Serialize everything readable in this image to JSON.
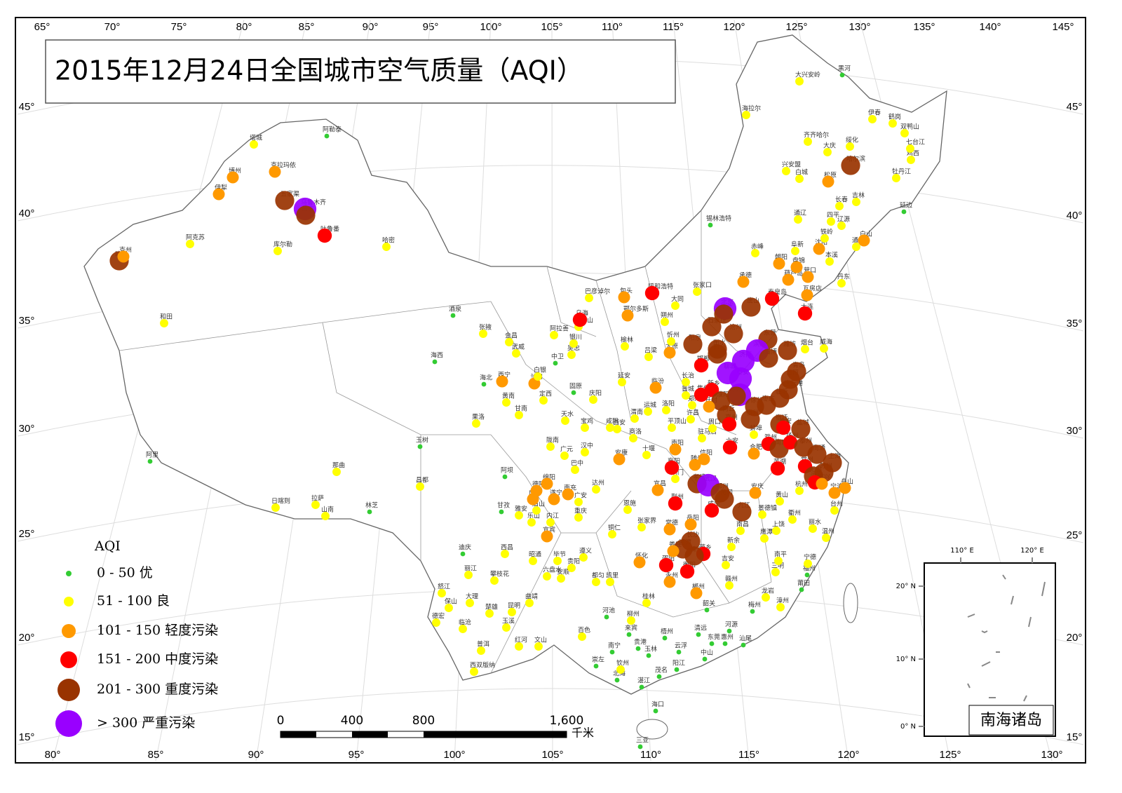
{
  "title": "2015年12月24日全国城市空气质量（AQI）",
  "graticule": {
    "top": [
      "65°",
      "70°",
      "75°",
      "80°",
      "85°",
      "90°",
      "95°",
      "100°",
      "105°",
      "110°",
      "115°",
      "120°",
      "125°",
      "130°",
      "135°",
      "140°",
      "145°"
    ],
    "bottom": [
      "80°",
      "85°",
      "90°",
      "95°",
      "100°",
      "105°",
      "110°",
      "115°",
      "120°",
      "125°",
      "130°"
    ],
    "left": [
      "45°",
      "40°",
      "35°",
      "30°",
      "25°",
      "20°",
      "15°"
    ],
    "right": [
      "45°",
      "40°",
      "35°",
      "30°",
      "25°",
      "20°",
      "15°"
    ]
  },
  "legend": {
    "title": "AQI",
    "items": [
      {
        "label": "0 - 50 优",
        "color": "#33cc33"
      },
      {
        "label": "51 - 100 良",
        "color": "#ffff00"
      },
      {
        "label": "101 - 150 轻度污染",
        "color": "#ff9900"
      },
      {
        "label": "151 - 200 中度污染",
        "color": "#ff0000"
      },
      {
        "label": "201 - 300 重度污染",
        "color": "#993300"
      },
      {
        "label": "> 300 严重污染",
        "color": "#9900ff"
      }
    ]
  },
  "scale_bar": {
    "labels": [
      "0",
      "400",
      "800",
      "1,600"
    ],
    "unit": "千米"
  },
  "inset": {
    "title": "南海诸岛",
    "labels": [
      "110° E",
      "120° E",
      "20° N",
      "10° N",
      "0° N"
    ]
  },
  "cities": [
    {
      "name": "塔城",
      "level": 1
    },
    {
      "name": "阿勒泰",
      "level": 0
    },
    {
      "name": "博州",
      "level": 2
    },
    {
      "name": "克拉玛依",
      "level": 2
    },
    {
      "name": "伊犁",
      "level": 2
    },
    {
      "name": "五家渠",
      "level": 4
    },
    {
      "name": "乌鲁木齐",
      "level": 5
    },
    {
      "name": "昌吉",
      "level": 4
    },
    {
      "name": "吐鲁番",
      "level": 3
    },
    {
      "name": "阿克苏",
      "level": 1
    },
    {
      "name": "库尔勒",
      "level": 1
    },
    {
      "name": "哈密",
      "level": 1
    },
    {
      "name": "喀什",
      "level": 4
    },
    {
      "name": "克州",
      "level": 2
    },
    {
      "name": "和田",
      "level": 1
    },
    {
      "name": "阿里",
      "level": 0
    },
    {
      "name": "日喀则",
      "level": 1
    },
    {
      "name": "拉萨",
      "level": 1
    },
    {
      "name": "山南",
      "level": 1
    },
    {
      "name": "林芝",
      "level": 0
    },
    {
      "name": "那曲",
      "level": 1
    },
    {
      "name": "昌都",
      "level": 1
    },
    {
      "name": "玉树",
      "level": 0
    },
    {
      "name": "果洛",
      "level": 1
    },
    {
      "name": "海西",
      "level": 0
    },
    {
      "name": "酒泉",
      "level": 0
    },
    {
      "name": "张掖",
      "level": 1
    },
    {
      "name": "金昌",
      "level": 1
    },
    {
      "name": "武威",
      "level": 1
    },
    {
      "name": "海北",
      "level": 0
    },
    {
      "name": "西宁",
      "level": 2
    },
    {
      "name": "黄南",
      "level": 1
    },
    {
      "name": "兰州",
      "level": 2
    },
    {
      "name": "定西",
      "level": 1
    },
    {
      "name": "甘南",
      "level": 1
    },
    {
      "name": "天水",
      "level": 1
    },
    {
      "name": "陇南",
      "level": 1
    },
    {
      "name": "阿拉善",
      "level": 1
    },
    {
      "name": "银川",
      "level": 1
    },
    {
      "name": "石嘴山",
      "level": 1
    },
    {
      "name": "吴忠",
      "level": 1
    },
    {
      "name": "中卫",
      "level": 0
    },
    {
      "name": "固原",
      "level": 0
    },
    {
      "name": "庆阳",
      "level": 1
    },
    {
      "name": "乌海",
      "level": 3
    },
    {
      "name": "巴彦淖尔",
      "level": 1
    },
    {
      "name": "包头",
      "level": 2
    },
    {
      "name": "呼和浩特",
      "level": 3
    },
    {
      "name": "鄂尔多斯",
      "level": 2
    },
    {
      "name": "榆林",
      "level": 1
    },
    {
      "name": "延安",
      "level": 1
    },
    {
      "name": "锡林浩特",
      "level": 0
    },
    {
      "name": "赤峰",
      "level": 1
    },
    {
      "name": "大兴安岭",
      "level": 1
    },
    {
      "name": "黑河",
      "level": 0
    },
    {
      "name": "海拉尔",
      "level": 1
    },
    {
      "name": "齐齐哈尔",
      "level": 1
    },
    {
      "name": "大庆",
      "level": 1
    },
    {
      "name": "绥化",
      "level": 1
    },
    {
      "name": "哈尔滨",
      "level": 4
    },
    {
      "name": "伊春",
      "level": 1
    },
    {
      "name": "鹤岗",
      "level": 1
    },
    {
      "name": "双鸭山",
      "level": 1
    },
    {
      "name": "七台江",
      "level": 1
    },
    {
      "name": "鸡西",
      "level": 1
    },
    {
      "name": "兴安盟",
      "level": 1
    },
    {
      "name": "白城",
      "level": 1
    },
    {
      "name": "松原",
      "level": 2
    },
    {
      "name": "长春",
      "level": 1
    },
    {
      "name": "吉林",
      "level": 1
    },
    {
      "name": "牡丹江",
      "level": 1
    },
    {
      "name": "延边",
      "level": 0
    },
    {
      "name": "通辽",
      "level": 1
    },
    {
      "name": "四平",
      "level": 1
    },
    {
      "name": "辽源",
      "level": 1
    },
    {
      "name": "白山",
      "level": 2
    },
    {
      "name": "通化",
      "level": 1
    },
    {
      "name": "铁岭",
      "level": 1
    },
    {
      "name": "沈阳",
      "level": 2
    },
    {
      "name": "阜新",
      "level": 1
    },
    {
      "name": "朝阳",
      "level": 2
    },
    {
      "name": "盘锦",
      "level": 2
    },
    {
      "name": "营口",
      "level": 2
    },
    {
      "name": "葫芦岛",
      "level": 2
    },
    {
      "name": "本溪",
      "level": 1
    },
    {
      "name": "丹东",
      "level": 1
    },
    {
      "name": "大连",
      "level": 3
    },
    {
      "name": "瓦房店",
      "level": 2
    },
    {
      "name": "承德",
      "level": 2
    },
    {
      "name": "张家口",
      "level": 1
    },
    {
      "name": "北京",
      "level": 5
    },
    {
      "name": "唐山",
      "level": 4
    },
    {
      "name": "秦皇岛",
      "level": 3
    },
    {
      "name": "大同",
      "level": 1
    },
    {
      "name": "朔州",
      "level": 1
    },
    {
      "name": "忻州",
      "level": 1
    },
    {
      "name": "太原",
      "level": 2
    },
    {
      "name": "石家庄",
      "level": 4
    },
    {
      "name": "保定",
      "level": 4
    },
    {
      "name": "沧州",
      "level": 4
    },
    {
      "name": "衡水",
      "level": 4
    },
    {
      "name": "阳泉",
      "level": 4
    },
    {
      "name": "东营",
      "level": 4
    },
    {
      "name": "滨州",
      "level": 5
    },
    {
      "name": "淄博",
      "level": 4
    },
    {
      "name": "潍坊",
      "level": 4
    },
    {
      "name": "烟台",
      "level": 1
    },
    {
      "name": "威海",
      "level": 1
    },
    {
      "name": "青岛",
      "level": 4
    },
    {
      "name": "日照",
      "level": 4
    },
    {
      "name": "济南",
      "level": 5
    },
    {
      "name": "泰安",
      "level": 5
    },
    {
      "name": "聊城",
      "level": 5
    },
    {
      "name": "邢台",
      "level": 4
    },
    {
      "name": "邯郸",
      "level": 3
    },
    {
      "name": "长治",
      "level": 1
    },
    {
      "name": "晋城",
      "level": 1
    },
    {
      "name": "吕梁",
      "level": 1
    },
    {
      "name": "临汾",
      "level": 2
    },
    {
      "name": "运城",
      "level": 1
    },
    {
      "name": "焦作",
      "level": 3
    },
    {
      "name": "新乡",
      "level": 3
    },
    {
      "name": "濮阳",
      "level": 4
    },
    {
      "name": "济宁",
      "level": 5
    },
    {
      "name": "临沂",
      "level": 4
    },
    {
      "name": "枣庄",
      "level": 4
    },
    {
      "name": "徐州",
      "level": 4
    },
    {
      "name": "连云港",
      "level": 4
    },
    {
      "name": "菏泽",
      "level": 4
    },
    {
      "name": "郑州",
      "level": 1
    },
    {
      "name": "开封",
      "level": 2
    },
    {
      "name": "洛阳",
      "level": 1
    },
    {
      "name": "商丘",
      "level": 4
    },
    {
      "name": "宿州",
      "level": 4
    },
    {
      "name": "宿迁",
      "level": 4
    },
    {
      "name": "淮安",
      "level": 3
    },
    {
      "name": "盐城",
      "level": 4
    },
    {
      "name": "许昌",
      "level": 1
    },
    {
      "name": "平顶山",
      "level": 1
    },
    {
      "name": "周口",
      "level": 1
    },
    {
      "name": "亳州",
      "level": 3
    },
    {
      "name": "蚌埠",
      "level": 1
    },
    {
      "name": "滁州",
      "level": 3
    },
    {
      "name": "南京",
      "level": 4
    },
    {
      "name": "扬州",
      "level": 3
    },
    {
      "name": "泰州",
      "level": 4
    },
    {
      "name": "南通",
      "level": 4
    },
    {
      "name": "南阳",
      "level": 2
    },
    {
      "name": "驻马店",
      "level": 1
    },
    {
      "name": "信阳",
      "level": 2
    },
    {
      "name": "合肥",
      "level": 2
    },
    {
      "name": "六安",
      "level": 3
    },
    {
      "name": "常州",
      "level": 3
    },
    {
      "name": "无锡",
      "level": 4
    },
    {
      "name": "苏州",
      "level": 4
    },
    {
      "name": "上海",
      "level": 4
    },
    {
      "name": "湖州",
      "level": 3
    },
    {
      "name": "嘉兴",
      "level": 2
    },
    {
      "name": "杭州",
      "level": 1
    },
    {
      "name": "宁波",
      "level": 2
    },
    {
      "name": "舟山",
      "level": 2
    },
    {
      "name": "芜湖",
      "level": 3
    },
    {
      "name": "安庆",
      "level": 2
    },
    {
      "name": "黄山",
      "level": 1
    },
    {
      "name": "随州",
      "level": 2
    },
    {
      "name": "孝感",
      "level": 4
    },
    {
      "name": "襄阳",
      "level": 3
    },
    {
      "name": "十堰",
      "level": 1
    },
    {
      "name": "荆门",
      "level": 1
    },
    {
      "name": "宜昌",
      "level": 2
    },
    {
      "name": "荆州",
      "level": 3
    },
    {
      "name": "武汉",
      "level": 5
    },
    {
      "name": "鄂州",
      "level": 4
    },
    {
      "name": "黄冈",
      "level": 4
    },
    {
      "name": "九江",
      "level": 4
    },
    {
      "name": "咸宁",
      "level": 3
    },
    {
      "name": "岳阳",
      "level": 2
    },
    {
      "name": "南昌",
      "level": 1
    },
    {
      "name": "景德镇",
      "level": 1
    },
    {
      "name": "上饶",
      "level": 1
    },
    {
      "name": "衢州",
      "level": 1
    },
    {
      "name": "丽水",
      "level": 1
    },
    {
      "name": "温州",
      "level": 1
    },
    {
      "name": "台州",
      "level": 1
    },
    {
      "name": "鹰潭",
      "level": 1
    },
    {
      "name": "新余",
      "level": 1
    },
    {
      "name": "萍乡",
      "level": 3
    },
    {
      "name": "长沙",
      "level": 4
    },
    {
      "name": "株洲",
      "level": 4
    },
    {
      "name": "湘潭",
      "level": 4
    },
    {
      "name": "常德",
      "level": 2
    },
    {
      "name": "张家界",
      "level": 1
    },
    {
      "name": "娄底",
      "level": 2
    },
    {
      "name": "邵阳",
      "level": 3
    },
    {
      "name": "衡阳",
      "level": 3
    },
    {
      "name": "永州",
      "level": 2
    },
    {
      "name": "郴州",
      "level": 2
    },
    {
      "name": "怀化",
      "level": 2
    },
    {
      "name": "吉安",
      "level": 1
    },
    {
      "name": "赣州",
      "level": 1
    },
    {
      "name": "三明",
      "level": 1
    },
    {
      "name": "南平",
      "level": 1
    },
    {
      "name": "宁德",
      "level": 1
    },
    {
      "name": "福州",
      "level": 0
    },
    {
      "name": "莆田",
      "level": 0
    },
    {
      "name": "漳州",
      "level": 1
    },
    {
      "name": "龙岩",
      "level": 1
    },
    {
      "name": "梅州",
      "level": 0
    },
    {
      "name": "汕尾",
      "level": 0
    },
    {
      "name": "河源",
      "level": 0
    },
    {
      "name": "惠州",
      "level": 0
    },
    {
      "name": "东莞",
      "level": 0
    },
    {
      "name": "清远",
      "level": 0
    },
    {
      "name": "韶关",
      "level": 0
    },
    {
      "name": "中山",
      "level": 0
    },
    {
      "name": "云浮",
      "level": 0
    },
    {
      "name": "阳江",
      "level": 0
    },
    {
      "name": "茂名",
      "level": 0
    },
    {
      "name": "湛江",
      "level": 0
    },
    {
      "name": "海口",
      "level": 0
    },
    {
      "name": "三亚",
      "level": 0
    },
    {
      "name": "桂林",
      "level": 1
    },
    {
      "name": "柳州",
      "level": 1
    },
    {
      "name": "来宾",
      "level": 0
    },
    {
      "name": "梧州",
      "level": 0
    },
    {
      "name": "贵港",
      "level": 0
    },
    {
      "name": "玉林",
      "level": 0
    },
    {
      "name": "南宁",
      "level": 0
    },
    {
      "name": "钦州",
      "level": 1
    },
    {
      "name": "北海",
      "level": 0
    },
    {
      "name": "崇左",
      "level": 0
    },
    {
      "name": "百色",
      "level": 1
    },
    {
      "name": "河池",
      "level": 0
    },
    {
      "name": "贵阳",
      "level": 1
    },
    {
      "name": "安顺",
      "level": 1
    },
    {
      "name": "都匀",
      "level": 1
    },
    {
      "name": "凯里",
      "level": 1
    },
    {
      "name": "遵义",
      "level": 1
    },
    {
      "name": "铜仁",
      "level": 1
    },
    {
      "name": "毕节",
      "level": 1
    },
    {
      "name": "六盘水",
      "level": 1
    },
    {
      "name": "重庆",
      "level": 1
    },
    {
      "name": "南充",
      "level": 2
    },
    {
      "name": "广安",
      "level": 1
    },
    {
      "name": "达州",
      "level": 1
    },
    {
      "name": "巴中",
      "level": 1
    },
    {
      "name": "广元",
      "level": 1
    },
    {
      "name": "绵阳",
      "level": 2
    },
    {
      "name": "德阳",
      "level": 2
    },
    {
      "name": "成都",
      "level": 2
    },
    {
      "name": "遂宁",
      "level": 2
    },
    {
      "name": "内江",
      "level": 1
    },
    {
      "name": "乐山",
      "level": 1
    },
    {
      "name": "眉山",
      "level": 1
    },
    {
      "name": "宜宾",
      "level": 2
    },
    {
      "name": "雅安",
      "level": 1
    },
    {
      "name": "甘孜",
      "level": 0
    },
    {
      "name": "阿坝",
      "level": 0
    },
    {
      "name": "西昌",
      "level": 1
    },
    {
      "name": "攀枝花",
      "level": 1
    },
    {
      "name": "昭通",
      "level": 1
    },
    {
      "name": "曲靖",
      "level": 1
    },
    {
      "name": "昆明",
      "level": 1
    },
    {
      "name": "玉溪",
      "level": 1
    },
    {
      "name": "楚雄",
      "level": 1
    },
    {
      "name": "大理",
      "level": 1
    },
    {
      "name": "丽江",
      "level": 1
    },
    {
      "name": "迪庆",
      "level": 0
    },
    {
      "name": "怒江",
      "level": 1
    },
    {
      "name": "保山",
      "level": 1
    },
    {
      "name": "德宏",
      "level": 1
    },
    {
      "name": "临沧",
      "level": 1
    },
    {
      "name": "普洱",
      "level": 1
    },
    {
      "name": "西双版纳",
      "level": 1
    },
    {
      "name": "红河",
      "level": 1
    },
    {
      "name": "文山",
      "level": 1
    },
    {
      "name": "汉中",
      "level": 1
    },
    {
      "name": "安康",
      "level": 2
    },
    {
      "name": "商洛",
      "level": 1
    },
    {
      "name": "宝鸡",
      "level": 1
    },
    {
      "name": "咸阳",
      "level": 1
    },
    {
      "name": "西安",
      "level": 1
    },
    {
      "name": "渭南",
      "level": 1
    },
    {
      "name": "恩施",
      "level": 1
    },
    {
      "name": "白银",
      "level": 1
    }
  ]
}
